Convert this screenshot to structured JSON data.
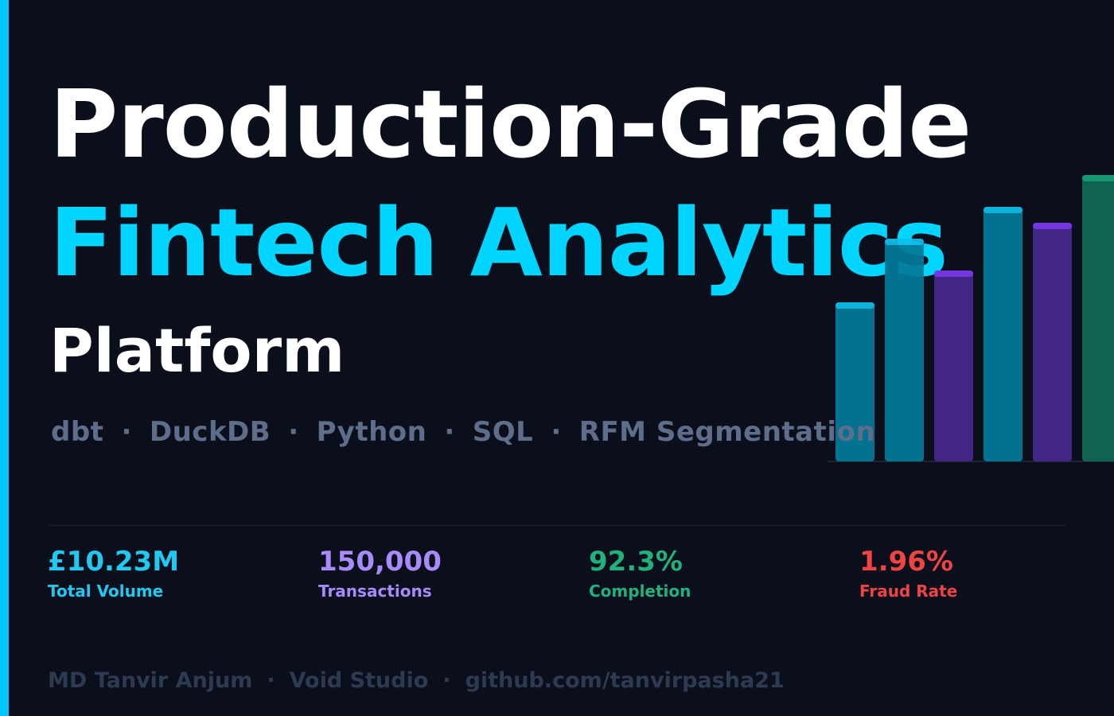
{
  "title": {
    "line1": "Production-Grade",
    "line2": "Fintech Analytics",
    "line3": "Platform"
  },
  "tech_stack": [
    "dbt",
    "DuckDB",
    "Python",
    "SQL",
    "RFM Segmentation"
  ],
  "separator": "·",
  "colors": {
    "accent": "#00c8ff",
    "cyan": "#00d4ff",
    "purple": "#a78bfa",
    "green": "#22b07d",
    "red": "#ef4444"
  },
  "stats": [
    {
      "value": "£10.23M",
      "label": "Total Volume",
      "color": "#22c8f0"
    },
    {
      "value": "150,000",
      "label": "Transactions",
      "color": "#a78bfa"
    },
    {
      "value": "92.3%",
      "label": "Completion",
      "color": "#22b07d"
    },
    {
      "value": "1.96%",
      "label": "Fraud Rate",
      "color": "#ef4444"
    }
  ],
  "decor_bars": [
    {
      "level": 0.5,
      "body": "#027a99",
      "cap": "#0fbfea"
    },
    {
      "level": 0.7,
      "body": "#027a99",
      "cap": "#0fbfea"
    },
    {
      "level": 0.6,
      "body": "#46288f",
      "cap": "#7c3aed"
    },
    {
      "level": 0.8,
      "body": "#027a99",
      "cap": "#0fbfea"
    },
    {
      "level": 0.75,
      "body": "#46288f",
      "cap": "#7c3aed"
    },
    {
      "level": 0.9,
      "body": "#0f6b55",
      "cap": "#16a37a"
    }
  ],
  "footer": [
    "MD Tanvir Anjum",
    "Void Studio",
    "github.com/tanvirpasha21"
  ]
}
